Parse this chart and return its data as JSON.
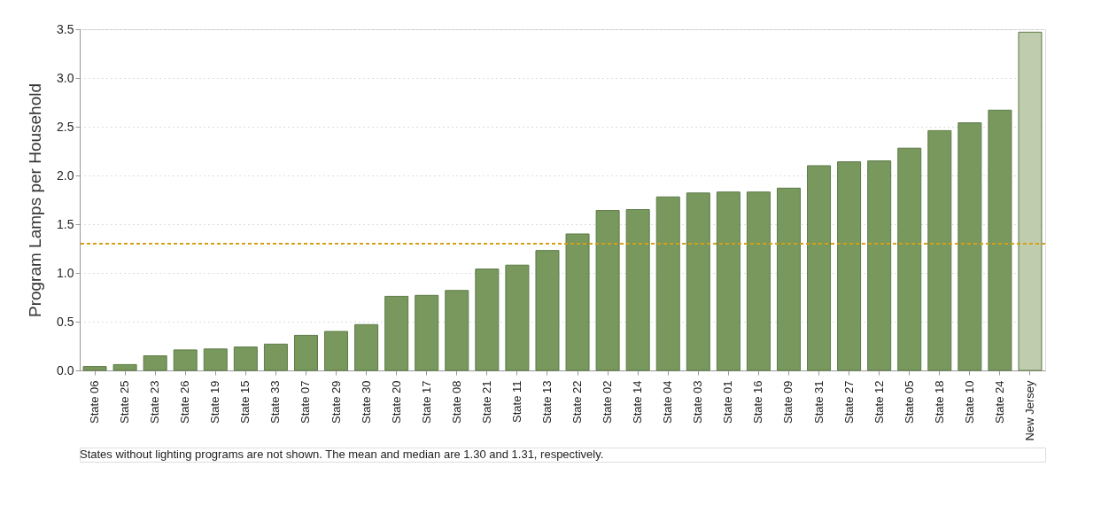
{
  "chart_data": {
    "type": "bar",
    "ylabel": "Program Lamps per Household",
    "categories": [
      "State 06",
      "State 25",
      "State 23",
      "State 26",
      "State 19",
      "State 15",
      "State 33",
      "State 07",
      "State 29",
      "State 30",
      "State 20",
      "State 17",
      "State 08",
      "State 21",
      "State 11",
      "State 13",
      "State 22",
      "State 02",
      "State 14",
      "State 04",
      "State 03",
      "State 01",
      "State 16",
      "State 09",
      "State 31",
      "State 27",
      "State 12",
      "State 05",
      "State 18",
      "State 10",
      "State 24",
      "New Jersey"
    ],
    "values": [
      0.04,
      0.06,
      0.15,
      0.21,
      0.22,
      0.24,
      0.27,
      0.36,
      0.4,
      0.47,
      0.76,
      0.77,
      0.82,
      1.04,
      1.08,
      1.23,
      1.4,
      1.64,
      1.65,
      1.78,
      1.82,
      1.83,
      1.83,
      1.87,
      2.1,
      2.14,
      2.15,
      2.28,
      2.46,
      2.54,
      2.67,
      3.47
    ],
    "colors": [
      "#78985e",
      "#78985e",
      "#78985e",
      "#78985e",
      "#78985e",
      "#78985e",
      "#78985e",
      "#78985e",
      "#78985e",
      "#78985e",
      "#78985e",
      "#78985e",
      "#78985e",
      "#78985e",
      "#78985e",
      "#78985e",
      "#78985e",
      "#78985e",
      "#78985e",
      "#78985e",
      "#78985e",
      "#78985e",
      "#78985e",
      "#78985e",
      "#78985e",
      "#78985e",
      "#78985e",
      "#78985e",
      "#78985e",
      "#78985e",
      "#78985e",
      "#bfccae"
    ],
    "ylim": [
      0,
      3.5
    ],
    "yticks": [
      {
        "value": 0,
        "label": "0.0"
      },
      {
        "value": 0.5,
        "label": "0.5"
      },
      {
        "value": 1,
        "label": "1.0"
      },
      {
        "value": 1.5,
        "label": "1.5"
      },
      {
        "value": 2,
        "label": "2.0"
      },
      {
        "value": 2.5,
        "label": "2.5"
      },
      {
        "value": 3,
        "label": "3.0"
      },
      {
        "value": 3.5,
        "label": "3.5"
      }
    ],
    "grid": "y",
    "ref_lines": [
      {
        "axis": "y",
        "value": 1.3,
        "color": "#d4a017",
        "line_style": "dashed"
      }
    ],
    "annotations": [
      "States without lighting programs are not shown. The mean and median are 1.30 and 1.31, respectively."
    ]
  }
}
